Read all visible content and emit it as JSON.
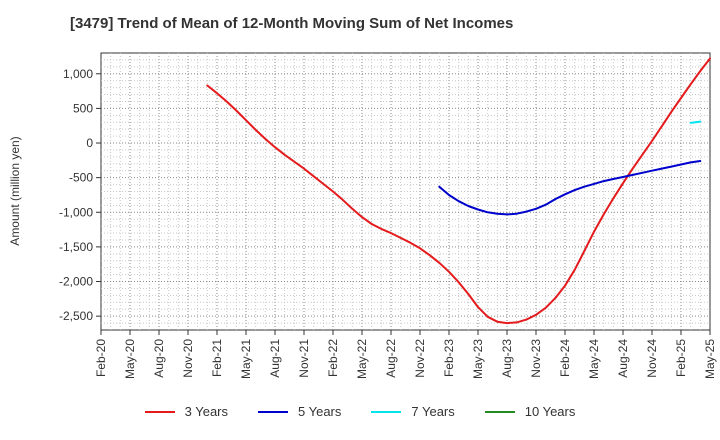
{
  "chart_data": {
    "type": "line",
    "title": "[3479]  Trend of Mean of 12-Month Moving Sum of Net Incomes",
    "ylabel": "Amount (million yen)",
    "xlabel": "",
    "ylim": [
      -2700,
      1300
    ],
    "y_ticks": [
      1000,
      500,
      0,
      -500,
      -1000,
      -1500,
      -2000,
      -2500
    ],
    "y_tick_labels": [
      "1,000",
      "500",
      "0",
      "-500",
      "-1,000",
      "-1,500",
      "-2,000",
      "-2,500"
    ],
    "x_range": [
      "2020-02",
      "2025-05"
    ],
    "x_tick_labels": [
      "Feb-20",
      "May-20",
      "Aug-20",
      "Nov-20",
      "Feb-21",
      "May-21",
      "Aug-21",
      "Nov-21",
      "Feb-22",
      "May-22",
      "Aug-22",
      "Nov-22",
      "Feb-23",
      "May-23",
      "Aug-23",
      "Nov-23",
      "Feb-24",
      "May-24",
      "Aug-24",
      "Nov-24",
      "Feb-25",
      "May-25"
    ],
    "grid": true,
    "legend_position": "bottom",
    "series": [
      {
        "name": "3 Years",
        "color": "#e41a1c",
        "points": [
          [
            "2021-01",
            830
          ],
          [
            "2021-02",
            720
          ],
          [
            "2021-03",
            600
          ],
          [
            "2021-04",
            470
          ],
          [
            "2021-05",
            330
          ],
          [
            "2021-06",
            190
          ],
          [
            "2021-07",
            60
          ],
          [
            "2021-08",
            -60
          ],
          [
            "2021-09",
            -170
          ],
          [
            "2021-10",
            -270
          ],
          [
            "2021-11",
            -370
          ],
          [
            "2021-12",
            -480
          ],
          [
            "2022-01",
            -590
          ],
          [
            "2022-02",
            -700
          ],
          [
            "2022-03",
            -820
          ],
          [
            "2022-04",
            -950
          ],
          [
            "2022-05",
            -1070
          ],
          [
            "2022-06",
            -1170
          ],
          [
            "2022-07",
            -1240
          ],
          [
            "2022-08",
            -1300
          ],
          [
            "2022-09",
            -1370
          ],
          [
            "2022-10",
            -1440
          ],
          [
            "2022-11",
            -1520
          ],
          [
            "2022-12",
            -1620
          ],
          [
            "2023-01",
            -1730
          ],
          [
            "2023-02",
            -1860
          ],
          [
            "2023-03",
            -2010
          ],
          [
            "2023-04",
            -2180
          ],
          [
            "2023-05",
            -2370
          ],
          [
            "2023-06",
            -2510
          ],
          [
            "2023-07",
            -2580
          ],
          [
            "2023-08",
            -2600
          ],
          [
            "2023-09",
            -2590
          ],
          [
            "2023-10",
            -2550
          ],
          [
            "2023-11",
            -2480
          ],
          [
            "2023-12",
            -2380
          ],
          [
            "2024-01",
            -2240
          ],
          [
            "2024-02",
            -2060
          ],
          [
            "2024-03",
            -1830
          ],
          [
            "2024-04",
            -1560
          ],
          [
            "2024-05",
            -1280
          ],
          [
            "2024-06",
            -1030
          ],
          [
            "2024-07",
            -800
          ],
          [
            "2024-08",
            -580
          ],
          [
            "2024-09",
            -370
          ],
          [
            "2024-10",
            -170
          ],
          [
            "2024-11",
            30
          ],
          [
            "2024-12",
            240
          ],
          [
            "2025-01",
            450
          ],
          [
            "2025-02",
            650
          ],
          [
            "2025-03",
            850
          ],
          [
            "2025-04",
            1040
          ],
          [
            "2025-05",
            1220
          ]
        ]
      },
      {
        "name": "5 Years",
        "color": "#0000cd",
        "points": [
          [
            "2023-01",
            -630
          ],
          [
            "2023-02",
            -750
          ],
          [
            "2023-03",
            -840
          ],
          [
            "2023-04",
            -910
          ],
          [
            "2023-05",
            -960
          ],
          [
            "2023-06",
            -1000
          ],
          [
            "2023-07",
            -1020
          ],
          [
            "2023-08",
            -1030
          ],
          [
            "2023-09",
            -1020
          ],
          [
            "2023-10",
            -990
          ],
          [
            "2023-11",
            -950
          ],
          [
            "2023-12",
            -890
          ],
          [
            "2024-01",
            -810
          ],
          [
            "2024-02",
            -740
          ],
          [
            "2024-03",
            -680
          ],
          [
            "2024-04",
            -630
          ],
          [
            "2024-05",
            -590
          ],
          [
            "2024-06",
            -550
          ],
          [
            "2024-07",
            -520
          ],
          [
            "2024-08",
            -490
          ],
          [
            "2024-09",
            -460
          ],
          [
            "2024-10",
            -430
          ],
          [
            "2024-11",
            -400
          ],
          [
            "2024-12",
            -370
          ],
          [
            "2025-01",
            -340
          ],
          [
            "2025-02",
            -310
          ],
          [
            "2025-03",
            -280
          ],
          [
            "2025-04",
            -260
          ]
        ]
      },
      {
        "name": "7 Years",
        "color": "#00e5ee",
        "points": [
          [
            "2025-03",
            290
          ],
          [
            "2025-04",
            310
          ]
        ]
      },
      {
        "name": "10 Years",
        "color": "#228b22",
        "points": []
      }
    ]
  }
}
